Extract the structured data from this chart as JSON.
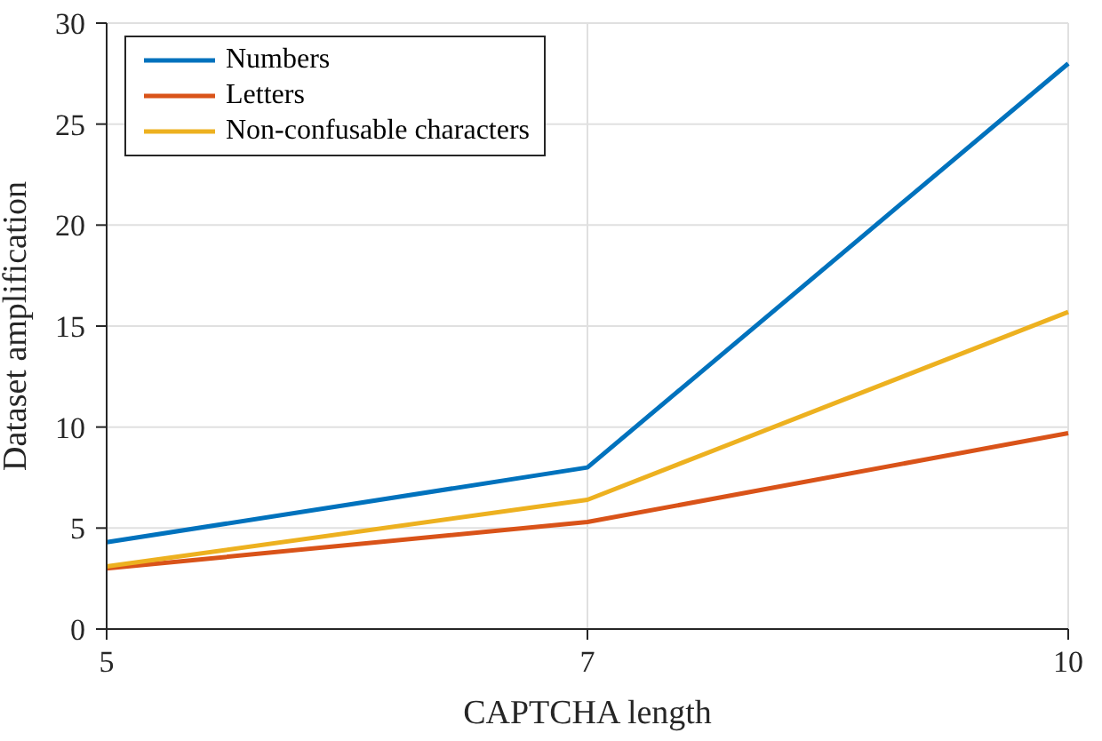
{
  "chart_data": {
    "type": "line",
    "xlabel": "CAPTCHA length",
    "ylabel": "Dataset amplification",
    "categories": [
      "5",
      "7",
      "10"
    ],
    "series": [
      {
        "name": "Numbers",
        "color": "#0072bd",
        "values": [
          4.3,
          8.0,
          28.0
        ]
      },
      {
        "name": "Letters",
        "color": "#d95319",
        "values": [
          3.0,
          5.3,
          9.7
        ]
      },
      {
        "name": "Non-confusable characters",
        "color": "#edb120",
        "values": [
          3.1,
          6.4,
          15.7
        ]
      }
    ],
    "ylim": [
      0,
      30
    ],
    "yticks": [
      0,
      5,
      10,
      15,
      20,
      25,
      30
    ],
    "grid": true,
    "legend": "top left",
    "marker": "none",
    "line_style": "solid"
  }
}
